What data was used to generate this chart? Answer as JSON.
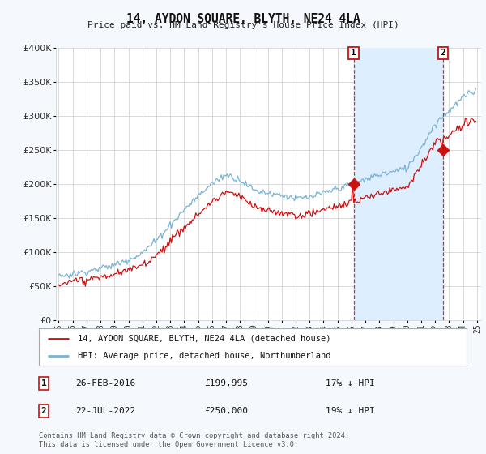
{
  "title": "14, AYDON SQUARE, BLYTH, NE24 4LA",
  "subtitle": "Price paid vs. HM Land Registry's House Price Index (HPI)",
  "hpi_label": "HPI: Average price, detached house, Northumberland",
  "price_label": "14, AYDON SQUARE, BLYTH, NE24 4LA (detached house)",
  "legend_note": "Contains HM Land Registry data © Crown copyright and database right 2024.\nThis data is licensed under the Open Government Licence v3.0.",
  "transaction1_date": "26-FEB-2016",
  "transaction1_price": "£199,995",
  "transaction1_note": "17% ↓ HPI",
  "transaction2_date": "22-JUL-2022",
  "transaction2_price": "£250,000",
  "transaction2_note": "19% ↓ HPI",
  "vline1_x": 2016.15,
  "vline2_x": 2022.55,
  "marker1_x": 2016.15,
  "marker1_y": 199995,
  "marker2_x": 2022.55,
  "marker2_y": 250000,
  "ylim": [
    0,
    400000
  ],
  "xlim": [
    1994.8,
    2025.3
  ],
  "hpi_color": "#7ab3d4",
  "price_color": "#cc1111",
  "shade_color": "#ddeeff",
  "background_color": "#f5f8fc",
  "plot_bg": "#ffffff",
  "grid_color": "#cccccc"
}
